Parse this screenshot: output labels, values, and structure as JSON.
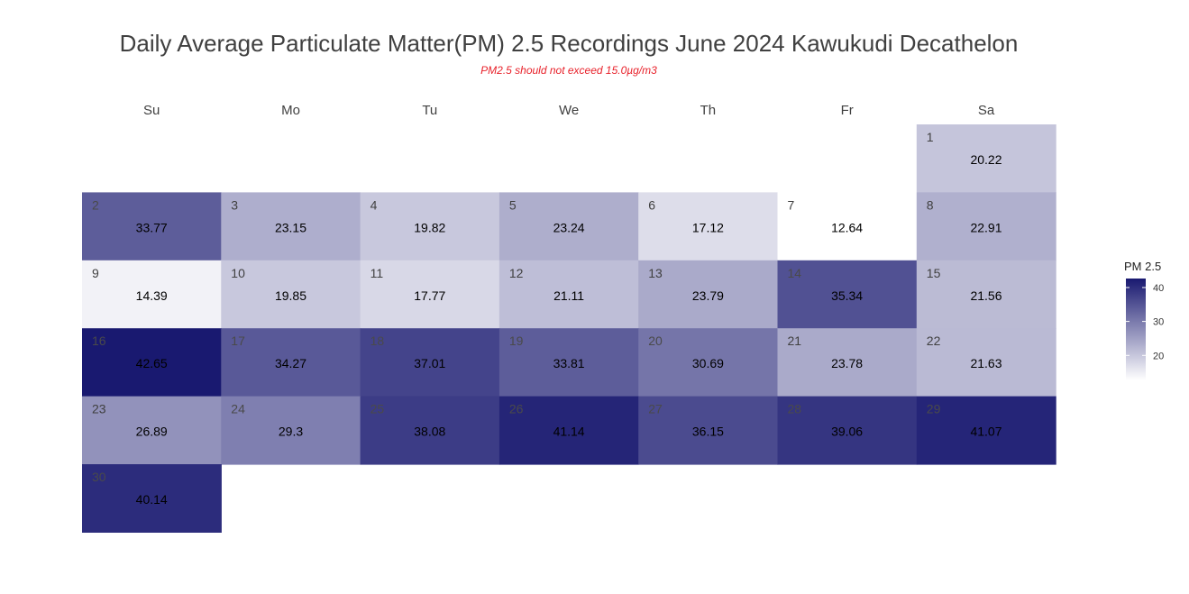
{
  "chart_data": {
    "type": "heatmap",
    "title": "Daily Average Particulate Matter(PM) 2.5 Recordings June 2024 Kawukudi Decathelon",
    "subtitle": "PM2.5 should not exceed 15.0µg/m3",
    "weekdays": [
      "Su",
      "Mo",
      "Tu",
      "We",
      "Th",
      "Fr",
      "Sa"
    ],
    "first_weekday_index": 6,
    "days": [
      1,
      2,
      3,
      4,
      5,
      6,
      7,
      8,
      9,
      10,
      11,
      12,
      13,
      14,
      15,
      16,
      17,
      18,
      19,
      20,
      21,
      22,
      23,
      24,
      25,
      26,
      27,
      28,
      29,
      30
    ],
    "values": [
      20.22,
      33.77,
      23.15,
      19.82,
      23.24,
      17.12,
      12.64,
      22.91,
      14.39,
      19.85,
      17.77,
      21.11,
      23.79,
      35.34,
      21.56,
      42.65,
      34.27,
      37.01,
      33.81,
      30.69,
      23.78,
      21.63,
      26.89,
      29.3,
      38.08,
      41.14,
      36.15,
      39.06,
      41.07,
      40.14
    ],
    "legend": {
      "title": "PM 2.5",
      "ticks": [
        20,
        30,
        40
      ],
      "range": [
        12.64,
        42.65
      ],
      "low_color": "#ffffff",
      "high_color": "#191970"
    }
  }
}
